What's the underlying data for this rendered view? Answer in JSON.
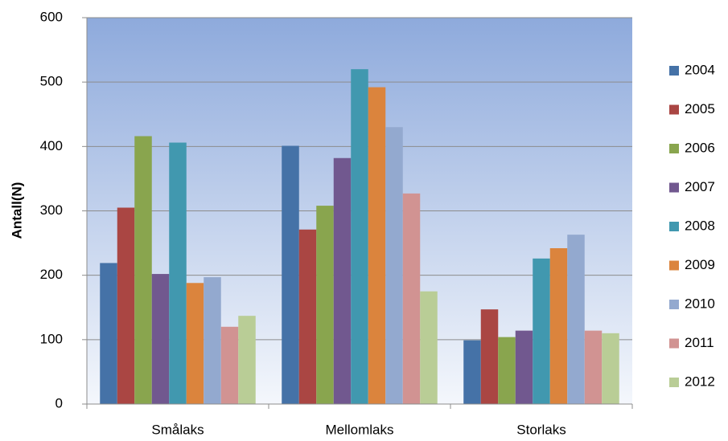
{
  "chart_data": {
    "type": "bar",
    "y_label": "Antall(N)",
    "categories": [
      "Smålaks",
      "Mellomlaks",
      "Storlaks"
    ],
    "series": [
      {
        "name": "2004",
        "color": "#4572a7",
        "values": [
          219,
          401,
          99
        ]
      },
      {
        "name": "2005",
        "color": "#aa4643",
        "values": [
          305,
          271,
          147
        ]
      },
      {
        "name": "2006",
        "color": "#89a54e",
        "values": [
          416,
          308,
          104
        ]
      },
      {
        "name": "2007",
        "color": "#71588f",
        "values": [
          202,
          382,
          114
        ]
      },
      {
        "name": "2008",
        "color": "#4198af",
        "values": [
          406,
          520,
          226
        ]
      },
      {
        "name": "2009",
        "color": "#db843d",
        "values": [
          188,
          492,
          242
        ]
      },
      {
        "name": "2010",
        "color": "#93a9cf",
        "values": [
          197,
          430,
          263
        ]
      },
      {
        "name": "2011",
        "color": "#d19392",
        "values": [
          120,
          327,
          114
        ]
      },
      {
        "name": "2012",
        "color": "#b9cd96",
        "values": [
          137,
          175,
          110
        ]
      }
    ],
    "ylim": [
      0,
      600
    ],
    "yticks": [
      0,
      100,
      200,
      300,
      400,
      500,
      600
    ],
    "grid": true,
    "legend": "right"
  }
}
